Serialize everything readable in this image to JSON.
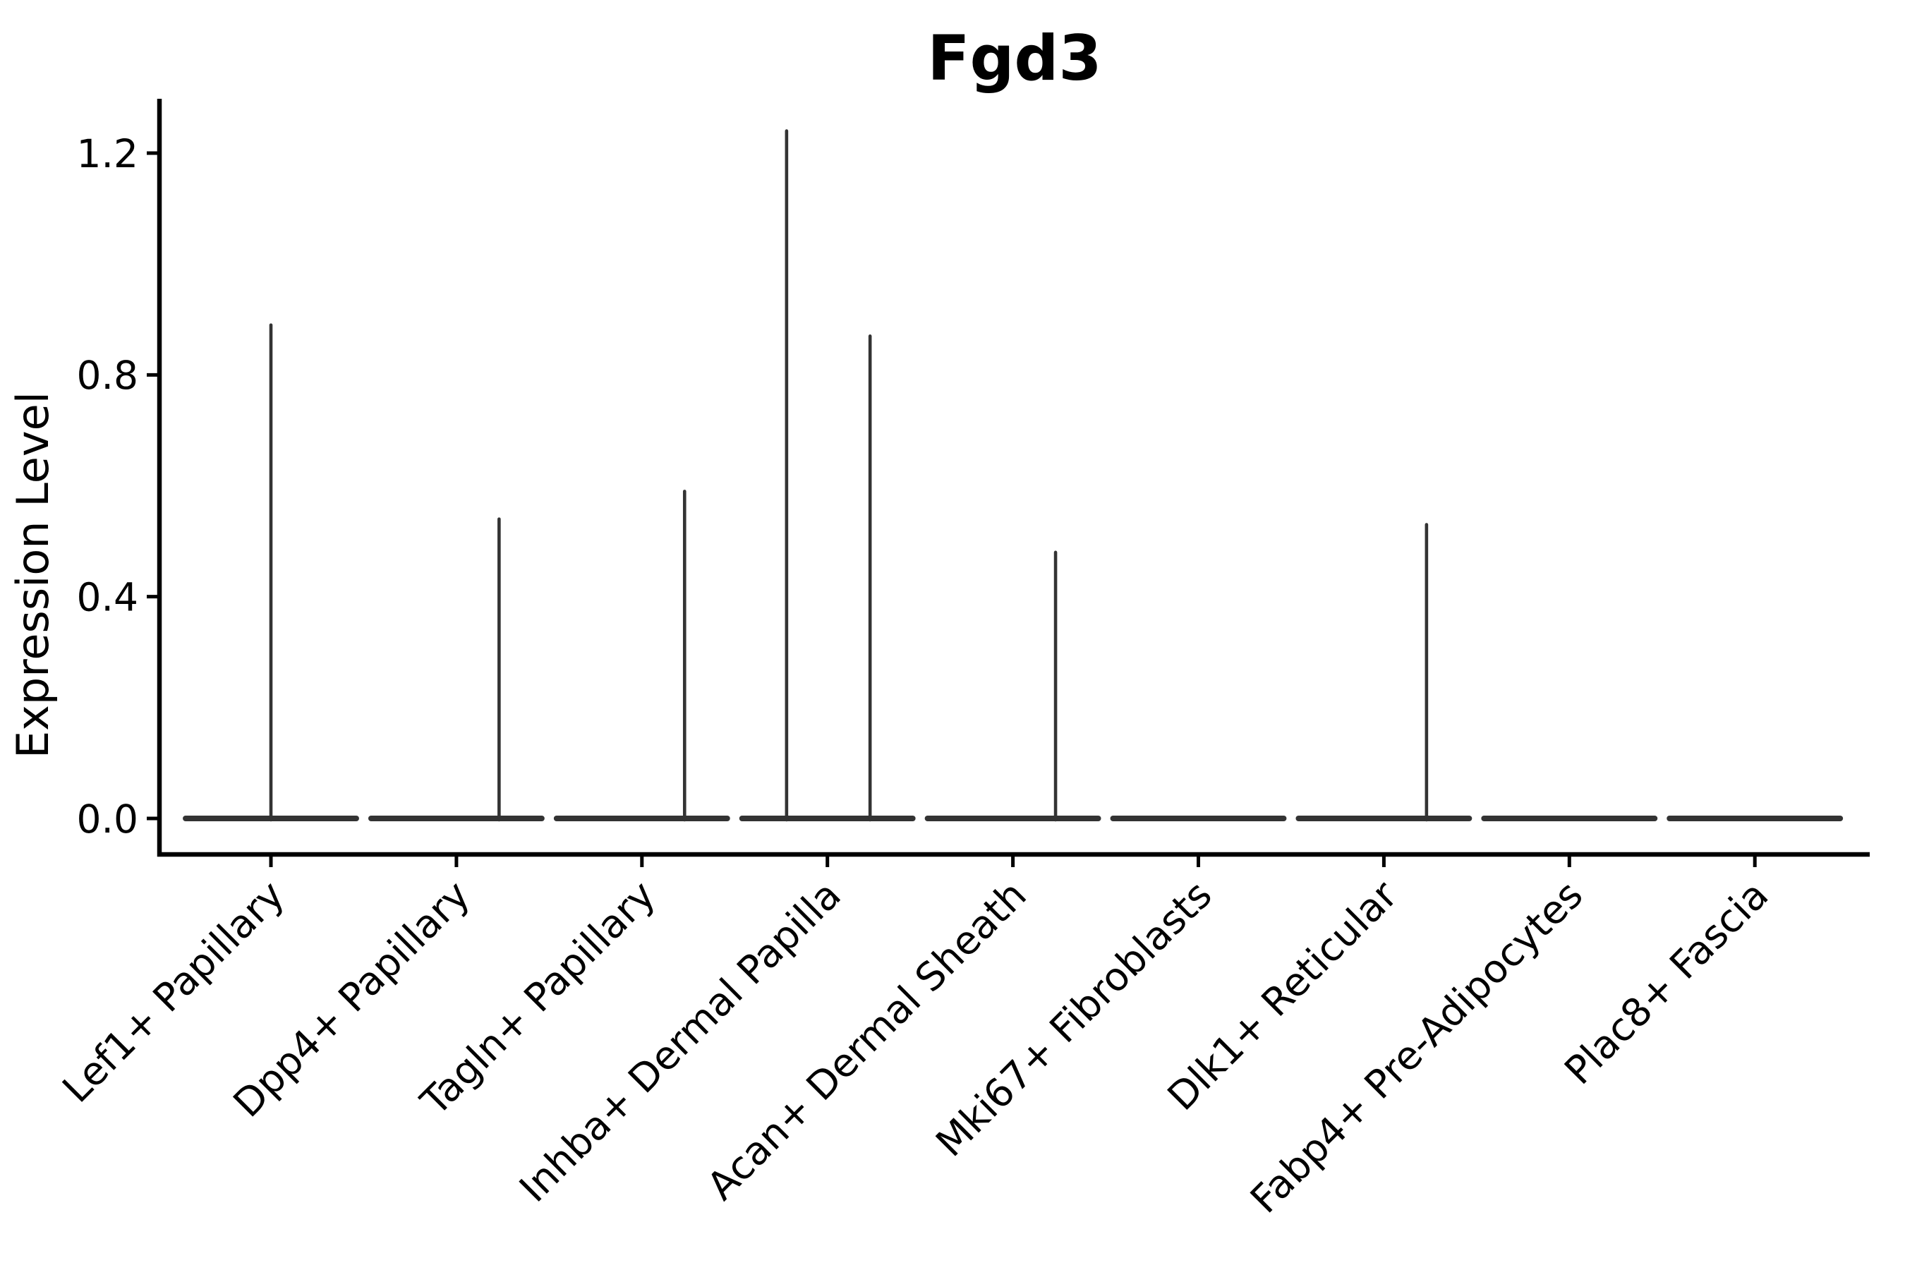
{
  "figure": {
    "title": "Fgd3"
  },
  "chart_data": {
    "type": "violin",
    "title": "Fgd3",
    "xlabel": "",
    "ylabel": "Expression Level",
    "categories": [
      "Lef1+ Papillary",
      "Dpp4+ Papillary",
      "Tagln+ Papillary",
      "Inhba+ Dermal Papilla",
      "Acan+ Dermal Sheath",
      "Mki67+ Fibroblasts",
      "Dlk1+ Reticular",
      "Fabp4+ Pre-Adipocytes",
      "Plac8+ Fascia"
    ],
    "ytick_labels": [
      "0.0",
      "0.4",
      "0.8",
      "1.2"
    ],
    "ytick_values": [
      0.0,
      0.4,
      0.8,
      1.2
    ],
    "ylim": [
      -0.06,
      1.3
    ],
    "grid": false,
    "legend": "none",
    "violin_half_width": 0.46,
    "series": [
      {
        "category": "Lef1+ Papillary",
        "base_value": 0.0,
        "spikes": [
          {
            "x_offset": 0.0,
            "value": 0.89
          }
        ]
      },
      {
        "category": "Dpp4+ Papillary",
        "base_value": 0.0,
        "spikes": [
          {
            "x_offset": 0.23,
            "value": 0.54
          }
        ]
      },
      {
        "category": "Tagln+ Papillary",
        "base_value": 0.0,
        "spikes": [
          {
            "x_offset": 0.23,
            "value": 0.59
          }
        ]
      },
      {
        "category": "Inhba+ Dermal Papilla",
        "base_value": 0.0,
        "spikes": [
          {
            "x_offset": -0.22,
            "value": 1.24
          },
          {
            "x_offset": 0.23,
            "value": 0.87
          }
        ]
      },
      {
        "category": "Acan+ Dermal Sheath",
        "base_value": 0.0,
        "spikes": [
          {
            "x_offset": 0.23,
            "value": 0.48
          }
        ]
      },
      {
        "category": "Mki67+ Fibroblasts",
        "base_value": 0.0,
        "spikes": []
      },
      {
        "category": "Dlk1+ Reticular",
        "base_value": 0.0,
        "spikes": [
          {
            "x_offset": 0.23,
            "value": 0.53
          }
        ]
      },
      {
        "category": "Fabp4+ Pre-Adipocytes",
        "base_value": 0.0,
        "spikes": []
      },
      {
        "category": "Plac8+ Fascia",
        "base_value": 0.0,
        "spikes": []
      }
    ],
    "colors": {
      "violin": "#333333",
      "axis": "#000000",
      "text": "#000000",
      "background": "#ffffff"
    }
  }
}
